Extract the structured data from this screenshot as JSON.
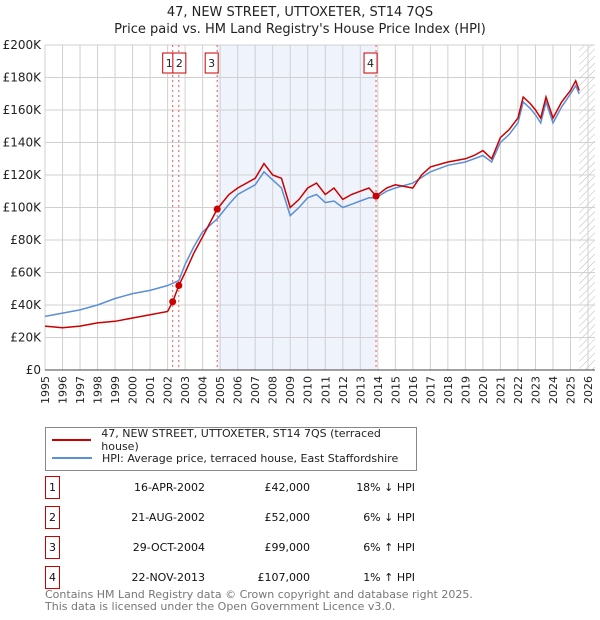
{
  "chart_data": {
    "type": "line",
    "title": "47, NEW STREET, UTTOXETER, ST14 7QS",
    "subtitle": "Price paid vs. HM Land Registry's House Price Index (HPI)",
    "xlim": [
      1995,
      2026
    ],
    "ylim": [
      0,
      200000
    ],
    "yticks": [
      "£0",
      "£20K",
      "£40K",
      "£60K",
      "£80K",
      "£100K",
      "£120K",
      "£140K",
      "£160K",
      "£180K",
      "£200K"
    ],
    "xticks": [
      "1995",
      "1996",
      "1997",
      "1998",
      "1999",
      "2000",
      "2001",
      "2002",
      "2003",
      "2004",
      "2005",
      "2006",
      "2007",
      "2008",
      "2009",
      "2010",
      "2011",
      "2012",
      "2013",
      "2014",
      "2015",
      "2016",
      "2017",
      "2018",
      "2019",
      "2020",
      "2021",
      "2022",
      "2023",
      "2024",
      "2025",
      "2026"
    ],
    "grid": true,
    "shaded_range": [
      2004.83,
      2013.9
    ],
    "forecast_from": 2025.5,
    "series": [
      {
        "name": "47, NEW STREET, UTTOXETER, ST14 7QS (terraced house)",
        "color": "#cc0000",
        "x": [
          1995,
          1996,
          1997,
          1998,
          1999,
          2000,
          2001,
          2002,
          2002.29,
          2002.64,
          2003,
          2003.5,
          2004,
          2004.83,
          2005.5,
          2006,
          2007,
          2007.5,
          2008,
          2008.5,
          2009,
          2009.5,
          2010,
          2010.5,
          2011,
          2011.5,
          2012,
          2012.5,
          2013,
          2013.5,
          2013.9,
          2014.5,
          2015,
          2016,
          2016.5,
          2017,
          2018,
          2019,
          2019.5,
          2020,
          2020.5,
          2021,
          2021.5,
          2022,
          2022.3,
          2022.7,
          2023,
          2023.3,
          2023.6,
          2024,
          2024.5,
          2025,
          2025.3,
          2025.5
        ],
        "y": [
          27000,
          26000,
          27000,
          29000,
          30000,
          32000,
          34000,
          36000,
          42000,
          52000,
          60000,
          72000,
          82000,
          99000,
          108000,
          112000,
          118000,
          127000,
          120000,
          118000,
          100000,
          105000,
          112000,
          115000,
          108000,
          112000,
          105000,
          108000,
          110000,
          112000,
          107000,
          112000,
          114000,
          112000,
          120000,
          125000,
          128000,
          130000,
          132000,
          135000,
          130000,
          143000,
          148000,
          155000,
          168000,
          164000,
          160000,
          155000,
          168000,
          155000,
          165000,
          172000,
          178000,
          172000
        ]
      },
      {
        "name": "HPI: Average price, terraced house, East Staffordshire",
        "color": "#5b8fd6",
        "x": [
          1995,
          1996,
          1997,
          1998,
          1999,
          2000,
          2001,
          2002,
          2002.64,
          2003,
          2003.5,
          2004,
          2004.83,
          2005.5,
          2006,
          2007,
          2007.5,
          2008,
          2008.5,
          2009,
          2009.5,
          2010,
          2010.5,
          2011,
          2011.5,
          2012,
          2012.5,
          2013,
          2013.5,
          2013.9,
          2014.5,
          2015,
          2016,
          2017,
          2018,
          2019,
          2020,
          2020.5,
          2021,
          2021.5,
          2022,
          2022.3,
          2022.7,
          2023,
          2023.3,
          2023.6,
          2024,
          2024.5,
          2025,
          2025.3,
          2025.5
        ],
        "y": [
          33000,
          35000,
          37000,
          40000,
          44000,
          47000,
          49000,
          52000,
          55000,
          65000,
          76000,
          85000,
          93000,
          102000,
          108000,
          114000,
          122000,
          117000,
          112000,
          95000,
          100000,
          106000,
          108000,
          103000,
          104000,
          100000,
          102000,
          104000,
          106000,
          106000,
          110000,
          112000,
          115000,
          122000,
          126000,
          128000,
          132000,
          128000,
          140000,
          145000,
          152000,
          165000,
          161000,
          157000,
          152000,
          165000,
          152000,
          162000,
          170000,
          175000,
          170000
        ]
      }
    ],
    "sales": [
      {
        "label": "1",
        "x": 2002.29,
        "y": 42000
      },
      {
        "label": "2",
        "x": 2002.64,
        "y": 52000
      },
      {
        "label": "3",
        "x": 2004.83,
        "y": 99000
      },
      {
        "label": "4",
        "x": 2013.9,
        "y": 107000
      }
    ]
  },
  "legend": {
    "red": "47, NEW STREET, UTTOXETER, ST14 7QS (terraced house)",
    "blue": "HPI: Average price, terraced house, East Staffordshire"
  },
  "transactions": [
    {
      "num": "1",
      "date": "16-APR-2002",
      "price": "£42,000",
      "hpi": "18% ↓ HPI"
    },
    {
      "num": "2",
      "date": "21-AUG-2002",
      "price": "£52,000",
      "hpi": "6% ↓ HPI"
    },
    {
      "num": "3",
      "date": "29-OCT-2004",
      "price": "£99,000",
      "hpi": "6% ↑ HPI"
    },
    {
      "num": "4",
      "date": "22-NOV-2013",
      "price": "£107,000",
      "hpi": "1% ↑ HPI"
    }
  ],
  "footer": {
    "line1": "Contains HM Land Registry data © Crown copyright and database right 2025.",
    "line2": "This data is licensed under the Open Government Licence v3.0."
  }
}
